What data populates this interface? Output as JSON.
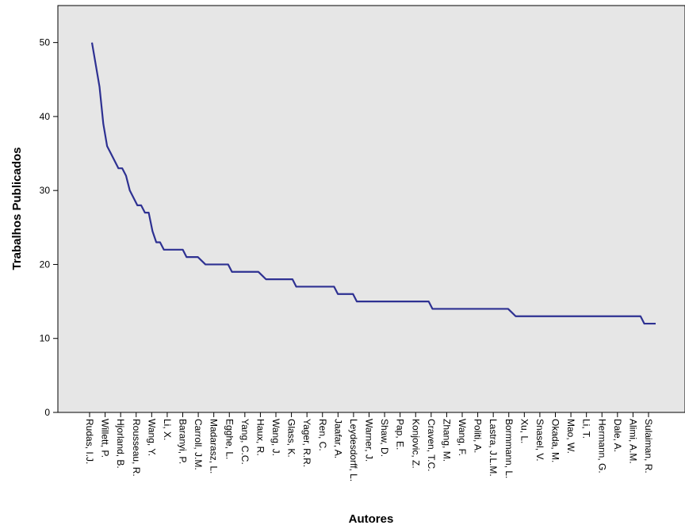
{
  "chart_data": {
    "type": "line",
    "title": "",
    "xlabel": "Autores",
    "ylabel": "Trabalhos Publicados",
    "ylim": [
      0,
      55
    ],
    "yticks": [
      0,
      10,
      20,
      30,
      40,
      50
    ],
    "grid": false,
    "legend": "none",
    "colors": {
      "line": "#2e3192",
      "plot_bg": "#e6e6e6",
      "axis": "#000000"
    },
    "tick_labels": [
      "Rudas, I.J.",
      "Willett, P.",
      "Hjorland, B.",
      "Rousseau, R.",
      "Wang, Y.",
      "Li, X.",
      "Baranyi, P.",
      "Carroll, J.M.",
      "Madarasz, L.",
      "Egghe, L.",
      "Yang, C.C.",
      "Haux, R.",
      "Wang, J.",
      "Glass, K.",
      "Yager, R.R.",
      "Ren, C.",
      "Jaafar, A.",
      "Leydesdorff, L.",
      "Warner, J.",
      "Shaw, D.",
      "Pap, E.",
      "Konjovic, Z.",
      "Craven, T.C.",
      "Zhang, M.",
      "Wang, F.",
      "Politi, A.",
      "Lastra, J.L.M.",
      "Bormmann, L.",
      "Xu, L.",
      "Snasel, V.",
      "Okada, M.",
      "Mao, W.",
      "Li, T.",
      "Hermann, G.",
      "Dale, A.",
      "Alimi, A.M.",
      "Sulaiman, R."
    ],
    "y": [
      50,
      47,
      44,
      39,
      36,
      35,
      34,
      33,
      33,
      32,
      30,
      29,
      28,
      28,
      27,
      27,
      24.5,
      23,
      23,
      22,
      22,
      22,
      22,
      22,
      22,
      21,
      21,
      21,
      21,
      20.5,
      20,
      20,
      20,
      20,
      20,
      20,
      20,
      19,
      19,
      19,
      19,
      19,
      19,
      19,
      19,
      18.5,
      18,
      18,
      18,
      18,
      18,
      18,
      18,
      18,
      17,
      17,
      17,
      17,
      17,
      17,
      17,
      17,
      17,
      17,
      17,
      16,
      16,
      16,
      16,
      16,
      15,
      15,
      15,
      15,
      15,
      15,
      15,
      15,
      15,
      15,
      15,
      15,
      15,
      15,
      15,
      15,
      15,
      15,
      15,
      15,
      14,
      14,
      14,
      14,
      14,
      14,
      14,
      14,
      14,
      14,
      14,
      14,
      14,
      14,
      14,
      14,
      14,
      14,
      14,
      14,
      14,
      13.5,
      13,
      13,
      13,
      13,
      13,
      13,
      13,
      13,
      13,
      13,
      13,
      13,
      13,
      13,
      13,
      13,
      13,
      13,
      13,
      13,
      13,
      13,
      13,
      13,
      13,
      13,
      13,
      13,
      13,
      13,
      13,
      13,
      13,
      13,
      12,
      12,
      12,
      12
    ]
  }
}
